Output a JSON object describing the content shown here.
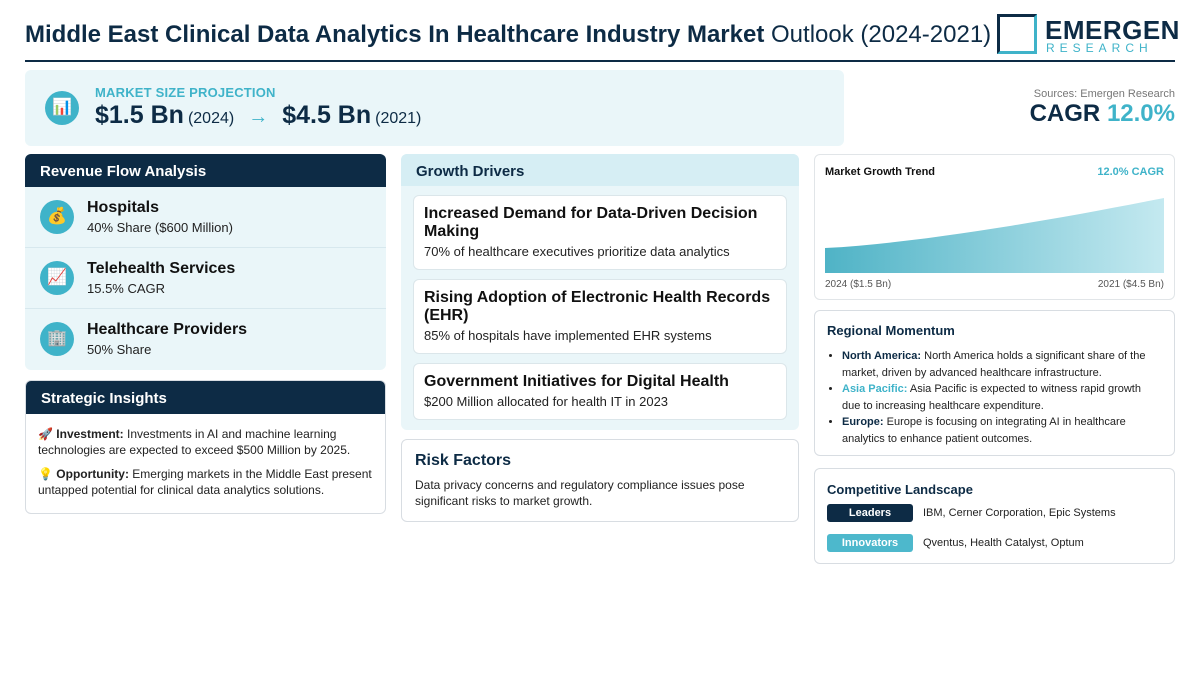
{
  "header": {
    "title_bold": "Middle East Clinical Data Analytics In Healthcare Industry Market",
    "title_light": "Outlook (2024-2021)",
    "logo_name": "EMERGEN",
    "logo_sub": "RESEARCH"
  },
  "projection": {
    "label": "MARKET SIZE PROJECTION",
    "start_value": "$1.5 Bn",
    "start_year": "(2024)",
    "arrow": "→",
    "end_value": "$4.5 Bn",
    "end_year": "(2021)",
    "icon": "bar-chart-icon"
  },
  "sources": "Sources: Emergen Research",
  "cagr": {
    "label": "CAGR",
    "value": "12.0%"
  },
  "revenue_flow": {
    "title": "Revenue Flow Analysis",
    "items": [
      {
        "icon": "money-bag-icon",
        "glyph": "💰",
        "name": "Hospitals",
        "detail": "40% Share ($600 Million)"
      },
      {
        "icon": "trend-chart-icon",
        "glyph": "📈",
        "name": "Telehealth Services",
        "detail": "15.5% CAGR"
      },
      {
        "icon": "building-icon",
        "glyph": "🏢",
        "name": "Healthcare Providers",
        "detail": "50% Share"
      }
    ]
  },
  "strategic_insights": {
    "title": "Strategic Insights",
    "items": [
      {
        "glyph": "🚀",
        "label": "Investment:",
        "text": "Investments in AI and machine learning technologies are expected to exceed $500 Million by 2025."
      },
      {
        "glyph": "💡",
        "label": "Opportunity:",
        "text": "Emerging markets in the Middle East present untapped potential for clinical data analytics solutions."
      }
    ]
  },
  "growth_drivers": {
    "title": "Growth Drivers",
    "items": [
      {
        "title": "Increased Demand for Data-Driven Decision Making",
        "detail": "70% of healthcare executives prioritize data analytics"
      },
      {
        "title": "Rising Adoption of Electronic Health Records (EHR)",
        "detail": "85% of hospitals have implemented EHR systems"
      },
      {
        "title": "Government Initiatives for Digital Health",
        "detail": "$200 Million allocated for health IT in 2023"
      }
    ]
  },
  "risk": {
    "title": "Risk Factors",
    "text": "Data privacy concerns and regulatory compliance issues pose significant risks to market growth."
  },
  "trend": {
    "title": "Market Growth Trend",
    "cagr_label": "12.0% CAGR",
    "left_label": "2024 ($1.5 Bn)",
    "right_label": "2021 ($4.5 Bn)"
  },
  "chart_data": {
    "type": "area",
    "title": "Market Growth Trend",
    "x": [
      "2024",
      "2021"
    ],
    "values": [
      1.5,
      4.5
    ],
    "unit": "Bn",
    "legend": "none",
    "grid": false
  },
  "regional": {
    "title": "Regional Momentum",
    "items": [
      {
        "region": "North America:",
        "text": "North America holds a significant share of the market, driven by advanced healthcare infrastructure.",
        "accent": "#0d2b45"
      },
      {
        "region": "Asia Pacific:",
        "text": "Asia Pacific is expected to witness rapid growth due to increasing healthcare expenditure.",
        "accent": "#3fb3c9"
      },
      {
        "region": "Europe:",
        "text": "Europe is focusing on integrating AI in healthcare analytics to enhance patient outcomes.",
        "accent": "#0d2b45"
      }
    ]
  },
  "competitive": {
    "title": "Competitive Landscape",
    "rows": [
      {
        "badge": "Leaders",
        "names": "IBM, Cerner Corporation, Epic Systems",
        "color": "#0d2b45"
      },
      {
        "badge": "Innovators",
        "names": "Qventus, Health Catalyst, Optum",
        "color": "#4db8cc"
      }
    ]
  },
  "colors": {
    "navy": "#0d2b45",
    "teal": "#3fb3c9",
    "panel": "#eaf6f9"
  }
}
